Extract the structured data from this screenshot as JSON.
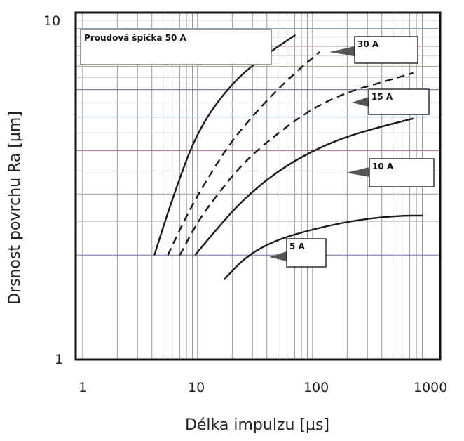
{
  "chart_data": {
    "type": "line",
    "xscale": "log",
    "yscale": "log",
    "xlim": [
      1,
      1000
    ],
    "ylim": [
      1,
      10
    ],
    "x_ticks": [
      "1",
      "10",
      "100",
      "1000"
    ],
    "y_ticks": [
      "1",
      "10"
    ],
    "xlabel": "Délka impulzu [μs]",
    "ylabel": "Drsnost povrchu Ra [μm]",
    "grid": true,
    "legend_title": "Proudová špička 50 A",
    "series": [
      {
        "name": "50 A",
        "style": "solid",
        "x": [
          4.2,
          6,
          10,
          20,
          40,
          70
        ],
        "y": [
          2.0,
          2.9,
          4.6,
          6.3,
          7.6,
          8.6
        ]
      },
      {
        "name": "30 A",
        "style": "dashed",
        "x": [
          5.5,
          8,
          12,
          20,
          40,
          70,
          115
        ],
        "y": [
          2.0,
          2.6,
          3.3,
          4.3,
          5.6,
          6.7,
          7.7
        ]
      },
      {
        "name": "15 A",
        "style": "dashed",
        "x": [
          7,
          10,
          15,
          25,
          50,
          100,
          200,
          400,
          750
        ],
        "y": [
          2.0,
          2.5,
          3.0,
          3.7,
          4.5,
          5.3,
          5.9,
          6.3,
          6.7
        ]
      },
      {
        "name": "10 A",
        "style": "solid",
        "x": [
          9.5,
          15,
          25,
          50,
          100,
          200,
          400,
          750
        ],
        "y": [
          2.0,
          2.4,
          2.9,
          3.5,
          4.0,
          4.4,
          4.7,
          4.95
        ]
      },
      {
        "name": "5 A",
        "style": "solid",
        "x": [
          17,
          25,
          40,
          70,
          150,
          300,
          600,
          900
        ],
        "y": [
          1.7,
          1.95,
          2.15,
          2.3,
          2.45,
          2.55,
          2.6,
          2.6
        ]
      }
    ],
    "callouts": [
      {
        "label": "30 A",
        "series": "30 A"
      },
      {
        "label": "15 A",
        "series": "15 A"
      },
      {
        "label": "10 A",
        "series": "10 A"
      },
      {
        "label": "5 A",
        "series": "5 A"
      }
    ]
  }
}
